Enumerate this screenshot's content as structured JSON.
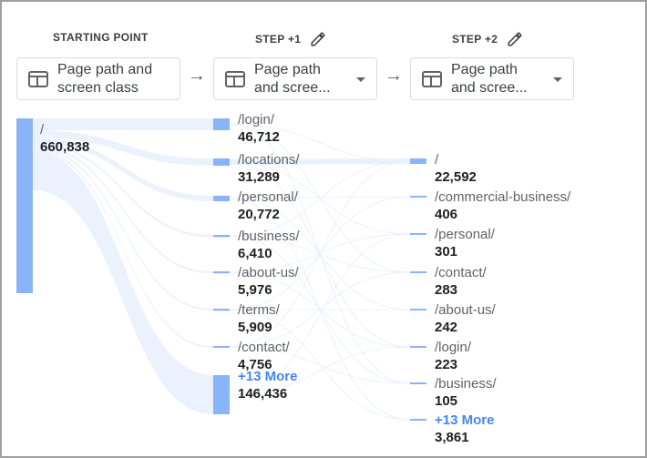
{
  "colors": {
    "bar": "#8ab4f8",
    "flow": "#e8f0fe",
    "link": "#4285f4"
  },
  "columns": [
    {
      "heading": "STARTING POINT",
      "dimension": "Page path and\nscreen class",
      "editable": false,
      "dropdown": false
    },
    {
      "heading": "STEP +1",
      "dimension": "Page path\nand scree...",
      "editable": true,
      "dropdown": true
    },
    {
      "heading": "STEP +2",
      "dimension": "Page path\nand scree...",
      "editable": true,
      "dropdown": true
    }
  ],
  "icons": {
    "dimension": "table-icon",
    "edit": "pencil-icon",
    "next": "arrow-right-icon",
    "menu": "dropdown-caret-icon"
  },
  "start_node": {
    "path": "/",
    "value": "660,838"
  },
  "step1_nodes": [
    {
      "path": "/login/",
      "value": "46,712",
      "share": 0.0707
    },
    {
      "path": "/locations/",
      "value": "31,289",
      "share": 0.0473
    },
    {
      "path": "/personal/",
      "value": "20,772",
      "share": 0.0314
    },
    {
      "path": "/business/",
      "value": "6,410",
      "share": 0.0097
    },
    {
      "path": "/about-us/",
      "value": "5,976",
      "share": 0.009
    },
    {
      "path": "/terms/",
      "value": "5,909",
      "share": 0.0089
    },
    {
      "path": "/contact/",
      "value": "4,756",
      "share": 0.0072
    },
    {
      "path": "+13 More",
      "value": "146,436",
      "share": 0.2215,
      "more": true
    }
  ],
  "step2_nodes": [
    {
      "path": "/",
      "value": "22,592",
      "share": 0.0342
    },
    {
      "path": "/commercial-business/",
      "value": "406",
      "share": 0.0006
    },
    {
      "path": "/personal/",
      "value": "301",
      "share": 0.0005
    },
    {
      "path": "/contact/",
      "value": "283",
      "share": 0.0004
    },
    {
      "path": "/about-us/",
      "value": "242",
      "share": 0.0004
    },
    {
      "path": "/login/",
      "value": "223",
      "share": 0.0003
    },
    {
      "path": "/business/",
      "value": "105",
      "share": 0.0002
    },
    {
      "path": "+13 More",
      "value": "3,861",
      "share": 0.0058,
      "more": true
    }
  ]
}
